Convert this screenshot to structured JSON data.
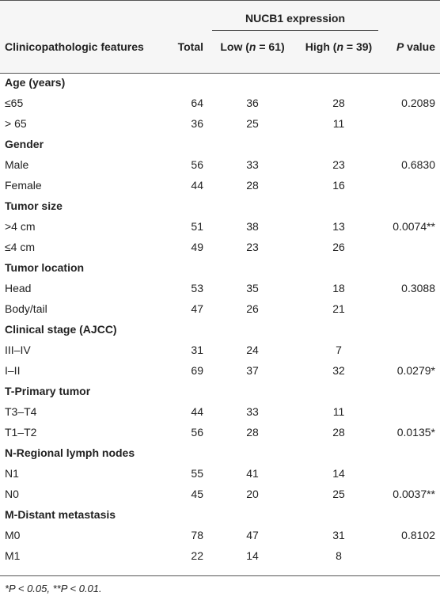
{
  "table": {
    "group_header": "NUCB1 expression",
    "columns": {
      "feature": "Clinicopathologic features",
      "total": "Total",
      "low_prefix": "Low (",
      "low_n": "n",
      "low_suffix": " = 61)",
      "high_prefix": "High (",
      "high_n": "n",
      "high_suffix": " = 39)",
      "p_prefix": "P",
      "p_suffix": " value"
    },
    "rows": [
      {
        "type": "section",
        "label": "Age (years)"
      },
      {
        "type": "data",
        "label": "≤65",
        "total": "64",
        "low": "36",
        "high": "28",
        "p": "0.2089"
      },
      {
        "type": "data",
        "label": "> 65",
        "total": "36",
        "low": "25",
        "high": "11",
        "p": ""
      },
      {
        "type": "section",
        "label": "Gender"
      },
      {
        "type": "data",
        "label": "Male",
        "total": "56",
        "low": "33",
        "high": "23",
        "p": "0.6830"
      },
      {
        "type": "data",
        "label": "Female",
        "total": "44",
        "low": "28",
        "high": "16",
        "p": ""
      },
      {
        "type": "section",
        "label": "Tumor size"
      },
      {
        "type": "data",
        "label": ">4 cm",
        "total": "51",
        "low": "38",
        "high": "13",
        "p": "0.0074**"
      },
      {
        "type": "data",
        "label": "≤4 cm",
        "total": "49",
        "low": "23",
        "high": "26",
        "p": ""
      },
      {
        "type": "section",
        "label": "Tumor location"
      },
      {
        "type": "data",
        "label": "Head",
        "total": "53",
        "low": "35",
        "high": "18",
        "p": "0.3088"
      },
      {
        "type": "data",
        "label": "Body/tail",
        "total": "47",
        "low": "26",
        "high": "21",
        "p": ""
      },
      {
        "type": "section",
        "label": "Clinical stage (AJCC)"
      },
      {
        "type": "data",
        "label": "III–IV",
        "total": "31",
        "low": "24",
        "high": "7",
        "p": ""
      },
      {
        "type": "data",
        "label": "I–II",
        "total": "69",
        "low": "37",
        "high": "32",
        "p": "0.0279*"
      },
      {
        "type": "section",
        "label": "T-Primary tumor"
      },
      {
        "type": "data",
        "label": "T3–T4",
        "total": "44",
        "low": "33",
        "high": "11",
        "p": ""
      },
      {
        "type": "data",
        "label": "T1–T2",
        "total": "56",
        "low": "28",
        "high": "28",
        "p": "0.0135*"
      },
      {
        "type": "section",
        "label": "N-Regional lymph nodes"
      },
      {
        "type": "data",
        "label": "N1",
        "total": "55",
        "low": "41",
        "high": "14",
        "p": ""
      },
      {
        "type": "data",
        "label": "N0",
        "total": "45",
        "low": "20",
        "high": "25",
        "p": "0.0037**"
      },
      {
        "type": "section",
        "label": "M-Distant metastasis"
      },
      {
        "type": "data",
        "label": "M0",
        "total": "78",
        "low": "47",
        "high": "31",
        "p": "0.8102"
      },
      {
        "type": "data",
        "label": "M1",
        "total": "22",
        "low": "14",
        "high": "8",
        "p": ""
      }
    ],
    "footnote": "*P < 0.05, **P < 0.01."
  }
}
